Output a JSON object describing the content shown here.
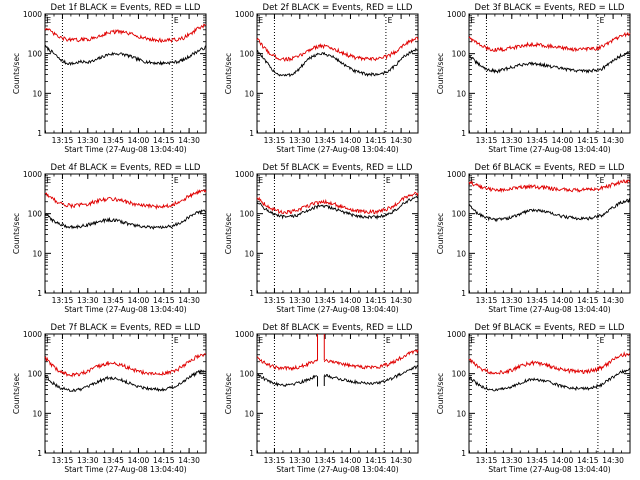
{
  "figure": {
    "background": "#ffffff"
  },
  "series_colors": {
    "events": "#000000",
    "lld": "#e00000"
  },
  "chart_data": [
    {
      "type": "line",
      "title": "Det 1f BLACK = Events, RED = LLD",
      "xlabel": "Start Time (27-Aug-08 13:04:40)",
      "ylabel": "Counts/sec",
      "ylim": [
        1,
        1000
      ],
      "yscale": "log",
      "y_ticks": [
        "1",
        "10",
        "100",
        "1000"
      ],
      "x_ticks": [
        "13:15",
        "13:30",
        "13:45",
        "14:00",
        "14:15",
        "14:30"
      ],
      "xlim": [
        "13:04:40",
        "14:40:00"
      ],
      "grid": false,
      "vlines": [
        "13:15:00",
        "14:20:00"
      ],
      "markers": [
        {
          "at": "13:05:30",
          "text": "E"
        },
        {
          "at": "14:21:00",
          "text": "E"
        }
      ],
      "series": [
        {
          "key": "events",
          "values": [
            150,
            110,
            75,
            58,
            56,
            62,
            62,
            65,
            80,
            95,
            100,
            98,
            88,
            75,
            65,
            60,
            58,
            58,
            60,
            63,
            72,
            95,
            120,
            145
          ]
        },
        {
          "key": "lld",
          "values": [
            450,
            340,
            260,
            230,
            220,
            225,
            230,
            245,
            290,
            340,
            360,
            350,
            320,
            290,
            250,
            230,
            220,
            215,
            220,
            225,
            260,
            340,
            440,
            520
          ]
        }
      ]
    },
    {
      "type": "line",
      "title": "Det 2f BLACK = Events, RED = LLD",
      "xlabel": "Start Time (27-Aug-08 13:04:40)",
      "ylabel": "Counts/sec",
      "ylim": [
        1,
        1000
      ],
      "yscale": "log",
      "y_ticks": [
        "1",
        "10",
        "100",
        "1000"
      ],
      "x_ticks": [
        "13:15",
        "13:30",
        "13:45",
        "14:00",
        "14:15",
        "14:30"
      ],
      "xlim": [
        "13:04:40",
        "14:40:00"
      ],
      "grid": false,
      "vlines": [
        "13:15:00",
        "14:21:00"
      ],
      "markers": [
        {
          "at": "13:05:30",
          "text": "E"
        },
        {
          "at": "14:22:00",
          "text": "E"
        }
      ],
      "series": [
        {
          "key": "events",
          "values": [
            120,
            70,
            42,
            30,
            28,
            30,
            40,
            62,
            88,
            100,
            95,
            80,
            60,
            45,
            36,
            32,
            30,
            30,
            32,
            38,
            55,
            85,
            110,
            130
          ]
        },
        {
          "key": "lld",
          "values": [
            230,
            140,
            95,
            78,
            72,
            75,
            85,
            110,
            140,
            160,
            150,
            130,
            110,
            92,
            80,
            75,
            72,
            75,
            80,
            92,
            120,
            170,
            215,
            240
          ]
        }
      ]
    },
    {
      "type": "line",
      "title": "Det 3f BLACK = Events, RED = LLD",
      "xlabel": "Start Time (27-Aug-08 13:04:40)",
      "ylabel": "Counts/sec",
      "ylim": [
        1,
        1000
      ],
      "yscale": "log",
      "y_ticks": [
        "1",
        "10",
        "100",
        "1000"
      ],
      "x_ticks": [
        "13:15",
        "13:30",
        "13:45",
        "14:00",
        "14:15",
        "14:30"
      ],
      "xlim": [
        "13:04:40",
        "14:40:00"
      ],
      "grid": false,
      "vlines": [
        "13:15:00",
        "14:21:00"
      ],
      "markers": [
        {
          "at": "13:05:30",
          "text": "E"
        },
        {
          "at": "14:22:00",
          "text": "E"
        }
      ],
      "series": [
        {
          "key": "events",
          "values": [
            90,
            60,
            45,
            38,
            36,
            40,
            45,
            50,
            55,
            57,
            55,
            50,
            46,
            43,
            40,
            38,
            37,
            37,
            38,
            42,
            55,
            75,
            95,
            110
          ]
        },
        {
          "key": "lld",
          "values": [
            260,
            190,
            150,
            130,
            125,
            130,
            140,
            150,
            165,
            175,
            170,
            160,
            150,
            140,
            135,
            130,
            128,
            130,
            135,
            150,
            185,
            240,
            290,
            320
          ]
        }
      ]
    },
    {
      "type": "line",
      "title": "Det 4f BLACK = Events, RED = LLD",
      "xlabel": "Start Time (27-Aug-08 13:04:40)",
      "ylabel": "Counts/sec",
      "ylim": [
        1,
        1000
      ],
      "yscale": "log",
      "y_ticks": [
        "1",
        "10",
        "100",
        "1000"
      ],
      "x_ticks": [
        "13:15",
        "13:30",
        "13:45",
        "14:00",
        "14:15",
        "14:30"
      ],
      "xlim": [
        "13:04:40",
        "14:40:00"
      ],
      "grid": false,
      "vlines": [
        "13:15:00",
        "14:20:00"
      ],
      "markers": [
        {
          "at": "13:05:30",
          "text": "E"
        },
        {
          "at": "14:21:00",
          "text": "E"
        }
      ],
      "series": [
        {
          "key": "events",
          "values": [
            100,
            70,
            55,
            48,
            46,
            48,
            52,
            58,
            65,
            70,
            68,
            62,
            55,
            50,
            47,
            45,
            44,
            45,
            48,
            55,
            70,
            90,
            110,
            120
          ]
        },
        {
          "key": "lld",
          "values": [
            330,
            240,
            190,
            165,
            160,
            165,
            175,
            195,
            220,
            240,
            235,
            215,
            190,
            170,
            160,
            155,
            150,
            155,
            165,
            190,
            240,
            300,
            350,
            380
          ]
        }
      ]
    },
    {
      "type": "line",
      "title": "Det 5f BLACK = Events, RED = LLD",
      "xlabel": "Start Time (27-Aug-08 13:04:40)",
      "ylabel": "Counts/sec",
      "ylim": [
        1,
        1000
      ],
      "yscale": "log",
      "y_ticks": [
        "1",
        "10",
        "100",
        "1000"
      ],
      "x_ticks": [
        "13:15",
        "13:30",
        "13:45",
        "14:00",
        "14:15",
        "14:30"
      ],
      "xlim": [
        "13:04:40",
        "14:40:00"
      ],
      "grid": false,
      "vlines": [
        "13:15:00",
        "14:20:00"
      ],
      "markers": [
        {
          "at": "13:05:30",
          "text": "E"
        },
        {
          "at": "14:21:00",
          "text": "E"
        }
      ],
      "series": [
        {
          "key": "events",
          "values": [
            200,
            140,
            105,
            88,
            82,
            85,
            95,
            115,
            140,
            155,
            150,
            135,
            115,
            100,
            90,
            85,
            82,
            82,
            88,
            100,
            130,
            180,
            230,
            260
          ]
        },
        {
          "key": "lld",
          "values": [
            260,
            180,
            135,
            115,
            110,
            112,
            125,
            150,
            180,
            200,
            195,
            175,
            150,
            130,
            118,
            112,
            110,
            112,
            120,
            140,
            180,
            240,
            300,
            330
          ]
        }
      ]
    },
    {
      "type": "line",
      "title": "Det 6f BLACK = Events, RED = LLD",
      "xlabel": "Start Time (27-Aug-08 13:04:40)",
      "ylabel": "Counts/sec",
      "ylim": [
        1,
        1000
      ],
      "yscale": "log",
      "y_ticks": [
        "1",
        "10",
        "100",
        "1000"
      ],
      "x_ticks": [
        "13:15",
        "13:30",
        "13:45",
        "14:00",
        "14:15",
        "14:30"
      ],
      "xlim": [
        "13:04:40",
        "14:40:00"
      ],
      "grid": false,
      "vlines": [
        "13:15:00",
        "14:21:00"
      ],
      "markers": [
        {
          "at": "13:05:30",
          "text": "E"
        },
        {
          "at": "14:22:00",
          "text": "E"
        }
      ],
      "series": [
        {
          "key": "events",
          "values": [
            160,
            110,
            85,
            75,
            72,
            74,
            80,
            92,
            110,
            125,
            122,
            110,
            98,
            88,
            82,
            78,
            76,
            76,
            80,
            92,
            120,
            160,
            200,
            220
          ]
        },
        {
          "key": "lld",
          "values": [
            640,
            520,
            450,
            410,
            400,
            405,
            420,
            445,
            470,
            480,
            470,
            450,
            430,
            410,
            400,
            395,
            395,
            400,
            410,
            440,
            500,
            580,
            650,
            680
          ]
        }
      ]
    },
    {
      "type": "line",
      "title": "Det 7f BLACK = Events, RED = LLD",
      "xlabel": "Start Time (27-Aug-08 13:04:40)",
      "ylabel": "Counts/sec",
      "ylim": [
        1,
        1000
      ],
      "yscale": "log",
      "y_ticks": [
        "1",
        "10",
        "100",
        "1000"
      ],
      "x_ticks": [
        "13:15",
        "13:30",
        "13:45",
        "14:00",
        "14:15",
        "14:30"
      ],
      "xlim": [
        "13:04:40",
        "14:40:00"
      ],
      "grid": false,
      "vlines": [
        "13:15:00",
        "14:20:00"
      ],
      "markers": [
        {
          "at": "13:05:30",
          "text": "E"
        },
        {
          "at": "14:21:00",
          "text": "E"
        }
      ],
      "series": [
        {
          "key": "events",
          "values": [
            90,
            60,
            45,
            40,
            38,
            40,
            45,
            55,
            68,
            78,
            75,
            68,
            58,
            50,
            45,
            42,
            40,
            41,
            44,
            52,
            68,
            90,
            110,
            120
          ]
        },
        {
          "key": "lld",
          "values": [
            250,
            160,
            115,
            98,
            95,
            98,
            110,
            135,
            165,
            185,
            180,
            160,
            140,
            120,
            108,
            100,
            98,
            100,
            110,
            130,
            170,
            230,
            280,
            300
          ]
        }
      ]
    },
    {
      "type": "line",
      "title": "Det 8f BLACK = Events, RED = LLD",
      "xlabel": "Start Time (27-Aug-08 13:04:40)",
      "ylabel": "Counts/sec",
      "ylim": [
        1,
        1000
      ],
      "yscale": "log",
      "y_ticks": [
        "1",
        "10",
        "100",
        "1000"
      ],
      "x_ticks": [
        "13:15",
        "13:30",
        "13:45",
        "14:00",
        "14:15",
        "14:30"
      ],
      "xlim": [
        "13:04:40",
        "14:40:00"
      ],
      "grid": false,
      "vlines": [
        "13:15:00",
        "14:20:00"
      ],
      "markers": [
        {
          "at": "13:05:30",
          "text": "E"
        },
        {
          "at": "14:21:00",
          "text": "E"
        }
      ],
      "gap": [
        "13:40:30",
        "13:44:30"
      ],
      "series": [
        {
          "key": "events",
          "values": [
            100,
            75,
            60,
            55,
            52,
            55,
            60,
            68,
            80,
            90,
            88,
            80,
            72,
            66,
            62,
            60,
            58,
            58,
            62,
            72,
            88,
            110,
            135,
            150
          ]
        },
        {
          "key": "lld",
          "values": [
            260,
            190,
            155,
            140,
            135,
            140,
            150,
            170,
            200,
            220,
            215,
            200,
            180,
            165,
            155,
            150,
            145,
            148,
            158,
            180,
            220,
            280,
            340,
            380
          ]
        }
      ]
    },
    {
      "type": "line",
      "title": "Det 9f BLACK = Events, RED = LLD",
      "xlabel": "Start Time (27-Aug-08 13:04:40)",
      "ylabel": "Counts/sec",
      "ylim": [
        1,
        1000
      ],
      "yscale": "log",
      "y_ticks": [
        "1",
        "10",
        "100",
        "1000"
      ],
      "x_ticks": [
        "13:15",
        "13:30",
        "13:45",
        "14:00",
        "14:15",
        "14:30"
      ],
      "xlim": [
        "13:04:40",
        "14:40:00"
      ],
      "grid": false,
      "vlines": [
        "13:15:00",
        "14:21:00"
      ],
      "markers": [
        {
          "at": "13:05:30",
          "text": "E"
        },
        {
          "at": "14:22:00",
          "text": "E"
        }
      ],
      "series": [
        {
          "key": "events",
          "values": [
            80,
            58,
            45,
            40,
            39,
            41,
            46,
            55,
            65,
            72,
            70,
            64,
            56,
            50,
            46,
            43,
            42,
            43,
            46,
            54,
            70,
            92,
            115,
            125
          ]
        },
        {
          "key": "lld",
          "values": [
            230,
            160,
            125,
            110,
            108,
            112,
            122,
            145,
            170,
            185,
            180,
            165,
            145,
            130,
            120,
            115,
            112,
            115,
            125,
            145,
            185,
            245,
            300,
            320
          ]
        }
      ]
    }
  ]
}
